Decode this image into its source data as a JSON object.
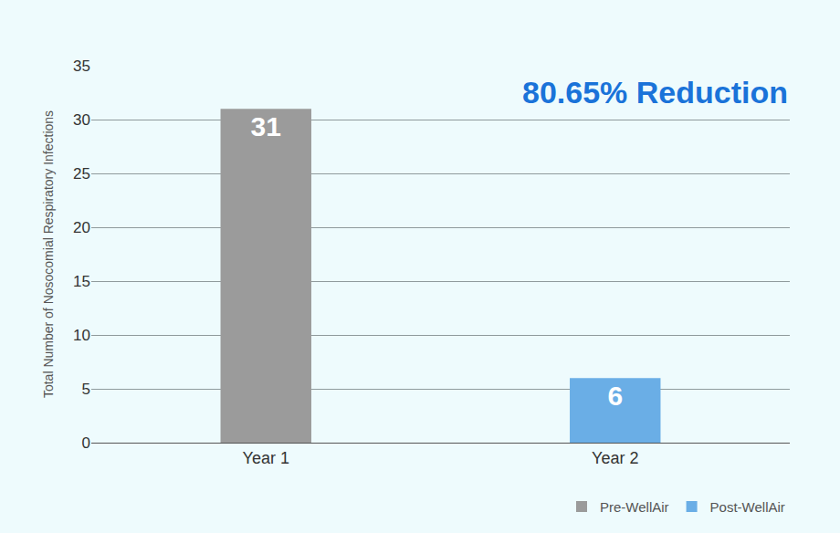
{
  "chart_data": {
    "type": "bar",
    "categories": [
      "Year 1",
      "Year 2"
    ],
    "series": [
      {
        "name": "Pre-WellAir",
        "color": "#9b9b9b",
        "values": [
          31,
          null
        ]
      },
      {
        "name": "Post-WellAir",
        "color": "#6aaee6",
        "values": [
          null,
          6
        ]
      }
    ],
    "y_label": "Total Number of Nosocomial Respiratory Infections",
    "annotations": [
      {
        "text": "80.65% Reduction"
      }
    ],
    "ylim": [
      0,
      35
    ],
    "yticks": [
      0,
      5,
      10,
      15,
      20,
      25,
      30,
      35
    ],
    "grid": true,
    "data_labels": true,
    "legend": "bottom right"
  }
}
